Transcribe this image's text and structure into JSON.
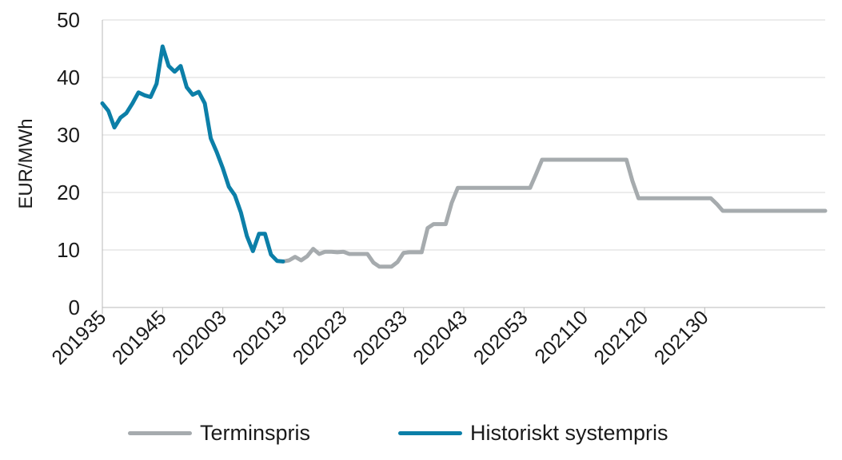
{
  "chart_data": {
    "type": "line",
    "ylabel": "EUR/MWh",
    "ylim": [
      0,
      50
    ],
    "yticks": [
      0,
      10,
      20,
      30,
      40,
      50
    ],
    "x_tick_labels": [
      "201935",
      "201945",
      "202003",
      "202013",
      "202023",
      "202033",
      "202043",
      "202053",
      "202110",
      "202120",
      "202130"
    ],
    "grid": true,
    "legend_position": "bottom",
    "series": [
      {
        "name": "Terminspris",
        "color": "#a6abae",
        "points": [
          [
            30,
            8.0
          ],
          [
            31,
            8.2
          ],
          [
            32,
            8.8
          ],
          [
            33,
            8.2
          ],
          [
            34,
            8.9
          ],
          [
            35,
            10.2
          ],
          [
            36,
            9.3
          ],
          [
            37,
            9.7
          ],
          [
            38,
            9.7
          ],
          [
            39,
            9.6
          ],
          [
            40,
            9.7
          ],
          [
            41,
            9.3
          ],
          [
            42,
            9.3
          ],
          [
            43,
            9.3
          ],
          [
            44,
            9.3
          ],
          [
            45,
            7.8
          ],
          [
            46,
            7.1
          ],
          [
            47,
            7.1
          ],
          [
            48,
            7.1
          ],
          [
            49,
            7.9
          ],
          [
            50,
            9.5
          ],
          [
            51,
            9.6
          ],
          [
            52,
            9.6
          ],
          [
            53,
            9.6
          ],
          [
            54,
            13.8
          ],
          [
            55,
            14.5
          ],
          [
            56,
            14.5
          ],
          [
            57,
            14.5
          ],
          [
            58,
            18.2
          ],
          [
            59,
            20.8
          ],
          [
            60,
            20.8
          ],
          [
            61,
            20.8
          ],
          [
            62,
            20.8
          ],
          [
            63,
            20.8
          ],
          [
            64,
            20.8
          ],
          [
            65,
            20.8
          ],
          [
            66,
            20.8
          ],
          [
            67,
            20.8
          ],
          [
            68,
            20.8
          ],
          [
            69,
            20.8
          ],
          [
            70,
            20.8
          ],
          [
            71,
            20.8
          ],
          [
            72,
            23.2
          ],
          [
            73,
            25.7
          ],
          [
            74,
            25.7
          ],
          [
            75,
            25.7
          ],
          [
            76,
            25.7
          ],
          [
            77,
            25.7
          ],
          [
            78,
            25.7
          ],
          [
            79,
            25.7
          ],
          [
            80,
            25.7
          ],
          [
            81,
            25.7
          ],
          [
            82,
            25.7
          ],
          [
            83,
            25.7
          ],
          [
            84,
            25.7
          ],
          [
            85,
            25.7
          ],
          [
            86,
            25.7
          ],
          [
            87,
            25.7
          ],
          [
            88,
            22.0
          ],
          [
            89,
            19.0
          ],
          [
            90,
            19.0
          ],
          [
            91,
            19.0
          ],
          [
            92,
            19.0
          ],
          [
            93,
            19.0
          ],
          [
            94,
            19.0
          ],
          [
            95,
            19.0
          ],
          [
            96,
            19.0
          ],
          [
            97,
            19.0
          ],
          [
            98,
            19.0
          ],
          [
            99,
            19.0
          ],
          [
            100,
            19.0
          ],
          [
            101,
            19.0
          ],
          [
            102,
            18.0
          ],
          [
            103,
            16.8
          ],
          [
            104,
            16.8
          ],
          [
            105,
            16.8
          ],
          [
            106,
            16.8
          ],
          [
            107,
            16.8
          ],
          [
            108,
            16.8
          ],
          [
            109,
            16.8
          ],
          [
            110,
            16.8
          ],
          [
            111,
            16.8
          ],
          [
            112,
            16.8
          ],
          [
            113,
            16.8
          ],
          [
            114,
            16.8
          ],
          [
            115,
            16.8
          ],
          [
            116,
            16.8
          ],
          [
            117,
            16.8
          ],
          [
            118,
            16.8
          ],
          [
            119,
            16.8
          ],
          [
            120,
            16.8
          ]
        ]
      },
      {
        "name": "Historiskt systempris",
        "color": "#0c7fa8",
        "points": [
          [
            0,
            35.5
          ],
          [
            1,
            34.2
          ],
          [
            2,
            31.3
          ],
          [
            3,
            33.0
          ],
          [
            4,
            33.8
          ],
          [
            5,
            35.5
          ],
          [
            6,
            37.4
          ],
          [
            7,
            36.9
          ],
          [
            8,
            36.6
          ],
          [
            9,
            38.9
          ],
          [
            10,
            45.4
          ],
          [
            11,
            42.0
          ],
          [
            12,
            41.0
          ],
          [
            13,
            42.0
          ],
          [
            14,
            38.3
          ],
          [
            15,
            37.0
          ],
          [
            16,
            37.5
          ],
          [
            17,
            35.5
          ],
          [
            18,
            29.4
          ],
          [
            19,
            27.0
          ],
          [
            20,
            24.2
          ],
          [
            21,
            21.0
          ],
          [
            22,
            19.5
          ],
          [
            23,
            16.5
          ],
          [
            24,
            12.4
          ],
          [
            25,
            9.8
          ],
          [
            26,
            12.8
          ],
          [
            27,
            12.8
          ],
          [
            28,
            9.2
          ],
          [
            29,
            8.1
          ],
          [
            30,
            8.0
          ]
        ]
      }
    ]
  }
}
